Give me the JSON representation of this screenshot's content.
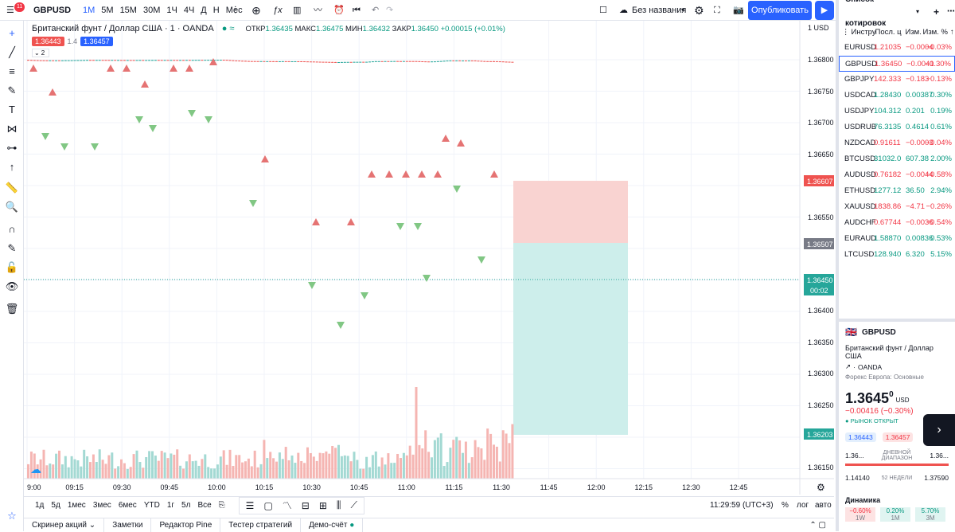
{
  "topbar": {
    "badge": "11",
    "symbol": "GBPUSD",
    "timeframes": [
      "1М",
      "5М",
      "15М",
      "30М",
      "1Ч",
      "4Ч",
      "Д",
      "Н",
      "Мес"
    ],
    "layout_name": "Без названия",
    "publish_label": "Опубликовать"
  },
  "legend": {
    "title": "Британский фунт / Доллар США · 1 · OANDA",
    "open_label": "ОТКР",
    "open": "1.36435",
    "high_label": "МАКС",
    "high": "1.36475",
    "low_label": "МИН",
    "low": "1.36432",
    "close_label": "ЗАКР",
    "close": "1.36450",
    "change": "+0.00015 (+0.01%)",
    "bid": "1.36443",
    "spread": "1.4",
    "ask": "1.36457",
    "collapse_count": "2"
  },
  "price_axis": {
    "currency": "1 USD",
    "labels": [
      "1.36800",
      "1.36750",
      "1.36700",
      "1.36650",
      "1.36550",
      "1.36400",
      "1.36350",
      "1.36300",
      "1.36250",
      "1.36150"
    ],
    "tag_top": "1.36607",
    "tag_mid": "1.36507",
    "tag_price": "1.36450",
    "tag_countdown": "00:02",
    "tag_bottom": "1.36203"
  },
  "time_axis": {
    "labels": [
      "9:00",
      "09:15",
      "09:30",
      "09:45",
      "10:00",
      "10:15",
      "10:30",
      "10:45",
      "11:00",
      "11:15",
      "11:30",
      "11:45",
      "12:00",
      "12:15",
      "12:30",
      "12:45"
    ]
  },
  "periods": [
    "1д",
    "5д",
    "1мес",
    "3мес",
    "6мес",
    "YTD",
    "1г",
    "5л",
    "Все"
  ],
  "clock": "11:29:59 (UTC+3)",
  "scale_options": [
    "%",
    "лог",
    "авто"
  ],
  "bottom_tabs": [
    "Скринер акций",
    "Заметки",
    "Редактор Pine",
    "Тестер стратегий",
    "Демо-счёт"
  ],
  "watchlist": {
    "title": "Список котировок",
    "columns": [
      "Инструм",
      "Посл. ц",
      "Изм.",
      "Изм. %"
    ],
    "rows": [
      {
        "sym": "EURUSD",
        "last": "1.21035",
        "chg": "−0.0004",
        "pct": "−0.03%",
        "dir": "neg"
      },
      {
        "sym": "GBPUSD",
        "last": "1.36450",
        "chg": "−0.0041",
        "pct": "−0.30%",
        "dir": "neg"
      },
      {
        "sym": "GBPJPY",
        "last": "142.333",
        "chg": "−0.183",
        "pct": "−0.13%",
        "dir": "neg"
      },
      {
        "sym": "USDCAD",
        "last": "1.28430",
        "chg": "0.00387",
        "pct": "0.30%",
        "dir": "pos"
      },
      {
        "sym": "USDJPY",
        "last": "104.312",
        "chg": "0.201",
        "pct": "0.19%",
        "dir": "pos"
      },
      {
        "sym": "USDRUB",
        "last": "76.3135",
        "chg": "0.4614",
        "pct": "0.61%",
        "dir": "pos"
      },
      {
        "sym": "NZDCAD",
        "last": "0.91611",
        "chg": "−0.0003",
        "pct": "−0.04%",
        "dir": "neg"
      },
      {
        "sym": "BTCUSD",
        "last": "31032.0",
        "chg": "607.38",
        "pct": "2.00%",
        "dir": "pos"
      },
      {
        "sym": "AUDUSD",
        "last": "0.76182",
        "chg": "−0.0044",
        "pct": "−0.58%",
        "dir": "neg"
      },
      {
        "sym": "ETHUSD",
        "last": "1277.12",
        "chg": "36.50",
        "pct": "2.94%",
        "dir": "pos"
      },
      {
        "sym": "XAUUSD",
        "last": "1838.86",
        "chg": "−4.71",
        "pct": "−0.26%",
        "dir": "neg"
      },
      {
        "sym": "AUDCHF",
        "last": "0.67744",
        "chg": "−0.0036",
        "pct": "−0.54%",
        "dir": "neg"
      },
      {
        "sym": "EURAUD",
        "last": "1.58870",
        "chg": "0.00836",
        "pct": "0.53%",
        "dir": "pos"
      },
      {
        "sym": "LTCUSD",
        "last": "128.940",
        "chg": "6.320",
        "pct": "5.15%",
        "dir": "pos"
      }
    ]
  },
  "details": {
    "symbol": "GBPUSD",
    "name": "Британский фунт / Доллар США",
    "exchange": "OANDA",
    "session": "Форекс Европа: Основные",
    "price_main": "1.3645",
    "price_sup": "0",
    "currency": "USD",
    "change": "−0.00416 (−0.30%)",
    "market_status": "РЫНОК ОТКРЫТ",
    "bid": "1.36443",
    "ask": "1.36457",
    "day_low": "1.36...",
    "day_high": "1.36...",
    "day_range_label": "ДНЕВНОЙ ДИАПАЗОН",
    "wk52_low": "1.14140",
    "wk52_high": "1.37590",
    "wk52_label": "52 НЕДЕЛИ",
    "dynamics_title": "Динамика",
    "dynamics": [
      {
        "v": "−0.60%",
        "p": "1W",
        "dir": "neg"
      },
      {
        "v": "0.20%",
        "p": "1M",
        "dir": "pos"
      },
      {
        "v": "5.70%",
        "p": "3M",
        "dir": "pos"
      }
    ]
  },
  "colors": {
    "up": "#26a69a",
    "down": "#ef5350",
    "accent": "#2962ff",
    "tp_zone": "#cdeeeb",
    "sl_zone": "#f9d3d1"
  }
}
